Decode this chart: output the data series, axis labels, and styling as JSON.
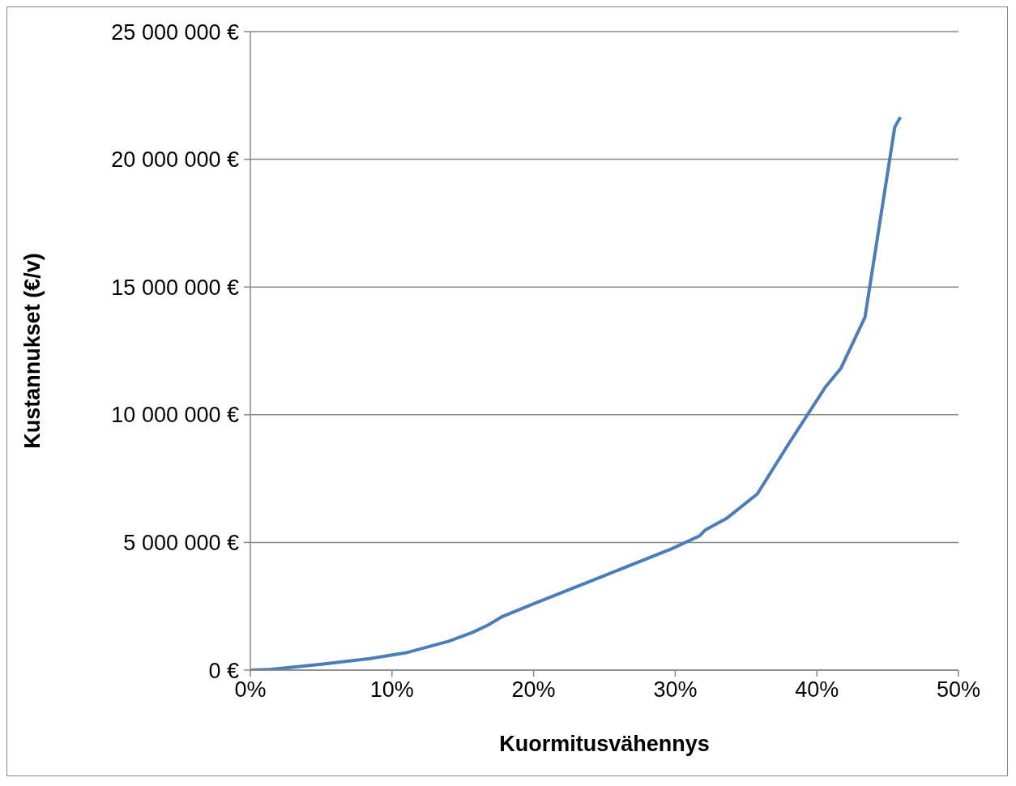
{
  "chart_data": {
    "type": "line",
    "xlabel": "Kuormitusvähennys",
    "ylabel": "Kustannukset (€/v)",
    "x": [
      0,
      1.2,
      2.5,
      5,
      8.45,
      11,
      14,
      15.7,
      16.8,
      17.8,
      20,
      25,
      29.7,
      31.7,
      32.1,
      33.6,
      35.8,
      38,
      40.6,
      41.7,
      43.4,
      45.5,
      45.9
    ],
    "series": [
      {
        "color": "#4a7ebb",
        "values": [
          0,
          20000,
          90000,
          230000,
          450000,
          680000,
          1130000,
          1480000,
          1770000,
          2100000,
          2600000,
          3700000,
          4740000,
          5250000,
          5480000,
          5930000,
          6900000,
          8850000,
          11080000,
          11820000,
          13820000,
          21260000,
          21650000
        ]
      }
    ],
    "xlim": [
      0,
      50
    ],
    "xticks": [
      {
        "value": 0,
        "label": "0%"
      },
      {
        "value": 10,
        "label": "10%"
      },
      {
        "value": 20,
        "label": "20%"
      },
      {
        "value": 30,
        "label": "30%"
      },
      {
        "value": 40,
        "label": "40%"
      },
      {
        "value": 50,
        "label": "50%"
      }
    ],
    "ylim": [
      0,
      25000000
    ],
    "yticks": [
      {
        "value": 0,
        "label": "0 €"
      },
      {
        "value": 5000000,
        "label": "5 000 000 €"
      },
      {
        "value": 10000000,
        "label": "10 000 000 €"
      },
      {
        "value": 15000000,
        "label": "15 000 000 €"
      },
      {
        "value": 20000000,
        "label": "20 000 000 €"
      },
      {
        "value": 25000000,
        "label": "25 000 000 €"
      }
    ],
    "grid": "y",
    "legend": false,
    "marker": "none",
    "line_style": "solid"
  }
}
